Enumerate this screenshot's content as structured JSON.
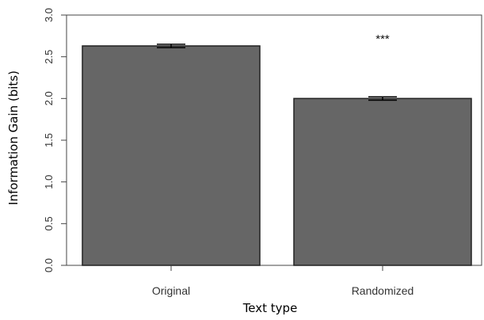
{
  "chart_data": {
    "type": "bar",
    "categories": [
      "Original",
      "Randomized"
    ],
    "values": [
      2.63,
      2.0
    ],
    "errors": [
      0.02,
      0.02
    ],
    "xlabel": "Text type",
    "ylabel": "Information Gain (bits)",
    "ylim": [
      0,
      3.0
    ],
    "yticks": [
      "0.0",
      "0.5",
      "1.0",
      "1.5",
      "2.0",
      "2.5",
      "3.0"
    ],
    "grid": false,
    "annotations": [
      {
        "text": "***",
        "category": "Randomized",
        "y": 2.67
      }
    ],
    "colors": {
      "bar": "#666666",
      "edge": "#222222",
      "axis": "#444444"
    }
  }
}
